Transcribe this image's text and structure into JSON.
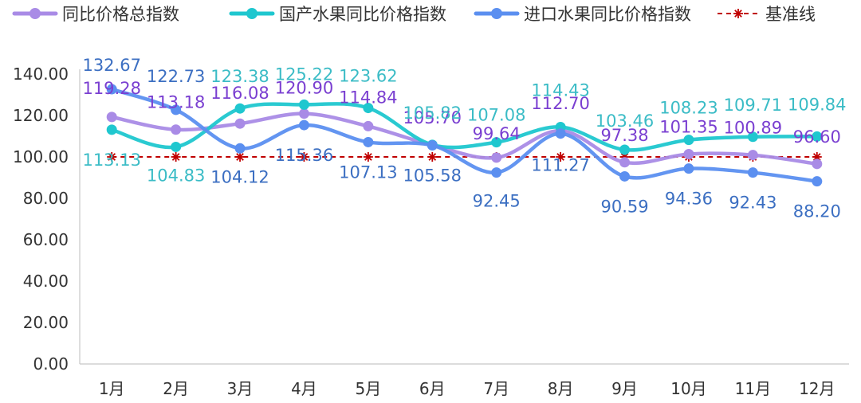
{
  "chart_data": {
    "type": "line",
    "title": "",
    "xlabel": "",
    "ylabel": "",
    "categories": [
      "1月",
      "2月",
      "3月",
      "4月",
      "5月",
      "6月",
      "7月",
      "8月",
      "9月",
      "10月",
      "11月",
      "12月"
    ],
    "ylim": [
      0,
      140
    ],
    "yticks": [
      0,
      20,
      40,
      60,
      80,
      100,
      120,
      140
    ],
    "ytick_labels": [
      "0.00",
      "20.00",
      "40.00",
      "60.00",
      "80.00",
      "100.00",
      "120.00",
      "140.00"
    ],
    "grid": false,
    "legend": "top",
    "smooth": true,
    "series": [
      {
        "name": "同比价格总指数",
        "color": "#a98be6",
        "label_color": "#7a3fd1",
        "values": [
          119.28,
          113.18,
          116.08,
          120.9,
          114.84,
          105.7,
          99.64,
          112.7,
          97.38,
          101.35,
          100.89,
          96.6
        ],
        "labels": [
          "119.28",
          "113.18",
          "116.08",
          "120.90",
          "114.84",
          "105.70",
          "99.64",
          "112.70",
          "97.38",
          "101.35",
          "100.89",
          "96.60"
        ]
      },
      {
        "name": "国产水果同比价格指数",
        "color": "#1fc7cf",
        "label_color": "#3bbcc6",
        "values": [
          113.13,
          104.83,
          123.38,
          125.22,
          123.62,
          105.82,
          107.08,
          114.43,
          103.46,
          108.23,
          109.71,
          109.84
        ],
        "labels": [
          "113.13",
          "104.83",
          "123.38",
          "125.22",
          "123.62",
          "105.82",
          "107.08",
          "114.43",
          "103.46",
          "108.23",
          "109.71",
          "109.84"
        ]
      },
      {
        "name": "进口水果同比价格指数",
        "color": "#5b8ff0",
        "label_color": "#3c6fc2",
        "values": [
          132.67,
          122.73,
          104.12,
          115.36,
          107.13,
          105.58,
          92.45,
          111.27,
          90.59,
          94.36,
          92.43,
          88.2
        ],
        "labels": [
          "132.67",
          "122.73",
          "104.12",
          "115.36",
          "107.13",
          "105.58",
          "92.45",
          "111.27",
          "90.59",
          "94.36",
          "92.43",
          "88.20"
        ]
      },
      {
        "name": "基准线",
        "color": "#c00000",
        "values": [
          100,
          100,
          100,
          100,
          100,
          100,
          100,
          100,
          100,
          100,
          100,
          100
        ],
        "dashed": true,
        "marker": "asterisk"
      }
    ]
  }
}
